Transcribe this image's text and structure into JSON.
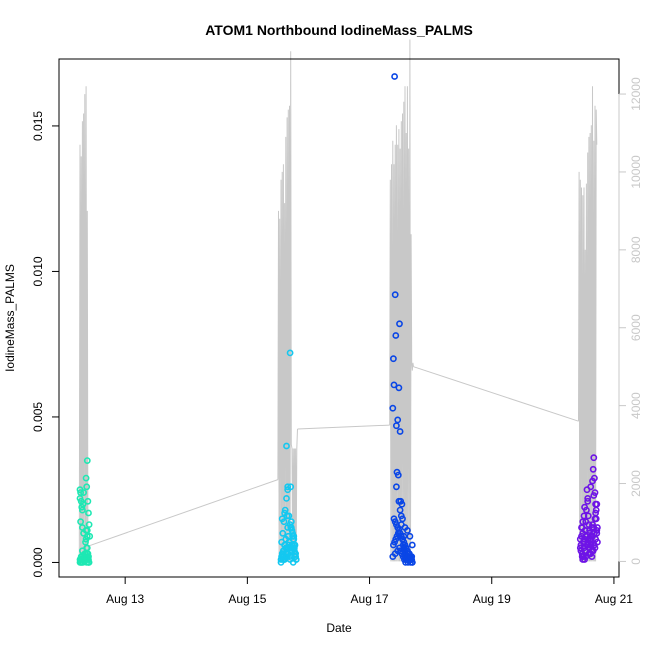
{
  "chart_data": {
    "type": "scatter",
    "title": "ATOM1 Northbound IodineMass_PALMS",
    "xlabel": "Date",
    "ylabel": "IodineMass_PALMS",
    "secondary_axis": {
      "tick_labels": [
        "0",
        "2000",
        "4000",
        "6000",
        "8000",
        "10000",
        "12000"
      ],
      "tick_values": [
        0,
        2000,
        4000,
        6000,
        8000,
        10000,
        12000
      ],
      "ylim": [
        -400,
        12900
      ],
      "color": "#c8c8c8"
    },
    "xlim": [
      "Aug 11 22:00",
      "Aug 21 02:00"
    ],
    "ylim": [
      -0.0005,
      0.0173
    ],
    "x_ticks": [
      {
        "label": "Aug 13",
        "day": 13
      },
      {
        "label": "Aug 15",
        "day": 15
      },
      {
        "label": "Aug 17",
        "day": 17
      },
      {
        "label": "Aug 19",
        "day": 19
      },
      {
        "label": "Aug 21",
        "day": 21
      }
    ],
    "y_ticks": [
      {
        "label": "0.000",
        "value": 0.0
      },
      {
        "label": "0.005",
        "value": 0.005
      },
      {
        "label": "0.010",
        "value": 0.01
      },
      {
        "label": "0.015",
        "value": 0.015
      }
    ],
    "grid": false,
    "background_line": {
      "color": "#c8c8c8",
      "segments": [
        {
          "x": [
            12.25,
            12.26,
            12.27,
            12.28,
            12.29,
            12.3,
            12.31,
            12.32,
            12.33,
            12.34,
            12.35,
            12.36,
            12.37,
            12.38,
            12.39,
            12.4,
            12.41
          ],
          "y": [
            0,
            10700,
            0,
            10400,
            0,
            11300,
            0,
            11500,
            0,
            12000,
            0,
            12200,
            0,
            9000,
            300,
            0,
            200
          ]
        },
        {
          "x": [
            12.41,
            15.5
          ],
          "y": [
            400,
            2100
          ]
        },
        {
          "x": [
            15.5,
            15.51,
            15.52,
            15.53,
            15.54,
            15.55,
            15.56,
            15.57,
            15.58,
            15.59,
            15.6,
            15.61,
            15.62,
            15.63,
            15.64,
            15.65,
            15.66,
            15.67,
            15.68,
            15.69,
            15.7,
            15.71,
            15.72,
            15.73,
            15.74,
            15.75,
            15.76,
            15.77,
            15.78,
            15.79,
            15.8,
            15.81,
            15.82
          ],
          "y": [
            2100,
            9000,
            0,
            8800,
            0,
            9800,
            0,
            10000,
            0,
            10200,
            0,
            9200,
            0,
            10900,
            0,
            11400,
            0,
            11600,
            0,
            11700,
            0,
            13100,
            3000,
            2900,
            0,
            2900,
            0,
            2900,
            0,
            2900,
            0,
            2900,
            3400
          ]
        },
        {
          "x": [
            15.82,
            17.33
          ],
          "y": [
            3400,
            3500
          ]
        },
        {
          "x": [
            17.33,
            17.34,
            17.35,
            17.36,
            17.37,
            17.38,
            17.39,
            17.4,
            17.41,
            17.42,
            17.43,
            17.44,
            17.45,
            17.46,
            17.47,
            17.48,
            17.49,
            17.5,
            17.51,
            17.52,
            17.53,
            17.54,
            17.55,
            17.56,
            17.57,
            17.58,
            17.59,
            17.6,
            17.61,
            17.62,
            17.63,
            17.64,
            17.65,
            17.66,
            17.67,
            17.68,
            17.69,
            17.7,
            17.71,
            17.72
          ],
          "y": [
            3500,
            9800,
            0,
            10200,
            0,
            10800,
            0,
            10200,
            0,
            10700,
            0,
            11200,
            0,
            10700,
            0,
            11100,
            0,
            10600,
            0,
            11300,
            0,
            11500,
            0,
            11800,
            0,
            12200,
            0,
            11000,
            0,
            12200,
            0,
            10600,
            0,
            13400,
            0,
            8400,
            5100,
            4900,
            5100,
            5000
          ]
        },
        {
          "x": [
            17.72,
            20.42
          ],
          "y": [
            5000,
            3600
          ]
        },
        {
          "x": [
            20.42,
            20.43,
            20.44,
            20.45,
            20.46,
            20.47,
            20.48,
            20.49,
            20.5,
            20.51,
            20.52,
            20.53,
            20.54,
            20.55,
            20.56,
            20.57,
            20.58,
            20.59,
            20.6,
            20.61,
            20.62,
            20.63,
            20.64,
            20.65,
            20.66,
            20.67,
            20.68,
            20.69,
            20.7,
            20.71,
            20.72
          ],
          "y": [
            3600,
            10000,
            0,
            9800,
            0,
            9600,
            0,
            9400,
            0,
            9600,
            0,
            8000,
            0,
            9700,
            0,
            10500,
            0,
            10900,
            0,
            11000,
            0,
            11200,
            0,
            12200,
            0,
            10800,
            0,
            11700,
            0,
            11600,
            10700
          ]
        }
      ]
    },
    "series": [
      {
        "color": "#1ee8b3",
        "x": [
          12.26,
          12.27,
          12.28,
          12.29,
          12.3,
          12.31,
          12.32,
          12.33,
          12.34,
          12.35,
          12.36,
          12.37,
          12.38,
          12.39,
          12.4,
          12.41,
          12.42,
          12.26,
          12.27,
          12.28,
          12.29,
          12.31,
          12.33,
          12.35,
          12.37,
          12.39,
          12.26,
          12.27,
          12.3,
          12.32,
          12.36,
          12.38,
          12.4,
          12.26,
          12.28,
          12.3,
          12.33,
          12.35,
          12.37,
          12.39,
          12.41,
          12.36,
          12.38,
          12.3,
          12.34,
          12.38,
          12.4,
          12.29,
          12.37,
          12.39,
          12.4,
          12.27,
          12.29,
          12.31,
          12.34,
          12.38,
          12.4
        ],
        "y": [
          0.0025,
          0.0024,
          0.0021,
          0.0019,
          0.0018,
          0.002,
          0.0024,
          0.0002,
          0.0001,
          0.0003,
          0.0029,
          0.0026,
          0.0035,
          0.0021,
          0.0017,
          0.0013,
          0.0009,
          0.0001,
          0.0,
          0.0002,
          0.0001,
          0.0,
          0.0001,
          0.0002,
          0.0,
          0.0001,
          0.0022,
          0.0014,
          0.0012,
          0.001,
          0.0008,
          0.0011,
          0.0002,
          0.0,
          0.0001,
          0.0002,
          0.0001,
          0.0007,
          0.0005,
          0.0003,
          0.0,
          0.0011,
          0.0009,
          0.0004,
          0.0003,
          0.0005,
          0.0001,
          0.0,
          0.0001,
          0.0002,
          0.0,
          0.0001,
          0.0,
          0.0001,
          0.0002,
          0.0003,
          0.0
        ]
      },
      {
        "color": "#14c8f0",
        "x": [
          15.55,
          15.56,
          15.57,
          15.58,
          15.59,
          15.6,
          15.61,
          15.62,
          15.63,
          15.64,
          15.65,
          15.66,
          15.67,
          15.68,
          15.69,
          15.7,
          15.71,
          15.72,
          15.73,
          15.74,
          15.75,
          15.76,
          15.77,
          15.78,
          15.79,
          15.8,
          15.56,
          15.58,
          15.6,
          15.62,
          15.64,
          15.66,
          15.68,
          15.7,
          15.72,
          15.74,
          15.76,
          15.78,
          15.57,
          15.59,
          15.61,
          15.63,
          15.65,
          15.67,
          15.69,
          15.71,
          15.73,
          15.75,
          15.77,
          15.79,
          15.55,
          15.6,
          15.65,
          15.7,
          15.75,
          15.8,
          15.58,
          15.63,
          15.68,
          15.73,
          15.78,
          15.57,
          15.61,
          15.66,
          15.71,
          15.76
        ],
        "y": [
          0.0001,
          0.0002,
          0.0003,
          0.0001,
          0.0002,
          0.0004,
          0.0001,
          0.0002,
          0.0003,
          0.004,
          0.0016,
          0.0012,
          0.0009,
          0.0006,
          0.0005,
          0.0072,
          0.0026,
          0.0014,
          0.0011,
          0.0009,
          0.0008,
          0.0006,
          0.0005,
          0.0003,
          0.0002,
          0.0001,
          0.0007,
          0.001,
          0.0014,
          0.0018,
          0.0022,
          0.0026,
          0.0016,
          0.0013,
          0.0012,
          0.001,
          0.0008,
          0.0006,
          0.0002,
          0.0004,
          0.0006,
          0.0008,
          0.0005,
          0.0003,
          0.0002,
          0.0004,
          0.0006,
          0.0005,
          0.0004,
          0.0003,
          0.0,
          0.0001,
          0.0002,
          0.0001,
          0.0,
          0.0001,
          0.0003,
          0.0005,
          0.0007,
          0.0004,
          0.0002,
          0.0015,
          0.0017,
          0.0025,
          0.0012,
          0.0009
        ]
      },
      {
        "color": "#0a46e6",
        "x": [
          17.38,
          17.39,
          17.4,
          17.41,
          17.42,
          17.43,
          17.44,
          17.45,
          17.46,
          17.47,
          17.48,
          17.49,
          17.5,
          17.51,
          17.52,
          17.53,
          17.54,
          17.55,
          17.56,
          17.57,
          17.58,
          17.59,
          17.6,
          17.61,
          17.62,
          17.63,
          17.64,
          17.65,
          17.66,
          17.67,
          17.68,
          17.69,
          17.7,
          17.4,
          17.42,
          17.44,
          17.46,
          17.48,
          17.5,
          17.52,
          17.54,
          17.56,
          17.58,
          17.6,
          17.62,
          17.64,
          17.66,
          17.68,
          17.7,
          17.39,
          17.41,
          17.43,
          17.45,
          17.47,
          17.49,
          17.51,
          17.53,
          17.55,
          17.57,
          17.59,
          17.61,
          17.63,
          17.65,
          17.67,
          17.69,
          17.38,
          17.42,
          17.46,
          17.5,
          17.54,
          17.58,
          17.62,
          17.66,
          17.7,
          17.44,
          17.48,
          17.52,
          17.56,
          17.6,
          17.64,
          17.68
        ],
        "y": [
          0.0053,
          0.007,
          0.0061,
          0.0167,
          0.0092,
          0.0078,
          0.0047,
          0.0031,
          0.0049,
          0.003,
          0.006,
          0.0082,
          0.0045,
          0.0021,
          0.0016,
          0.002,
          0.0008,
          0.0006,
          0.0005,
          0.0004,
          0.0003,
          0.0002,
          0.0001,
          0.0002,
          0.0001,
          0.0,
          0.0001,
          0.0002,
          0.0001,
          0.0,
          0.0001,
          0.0002,
          0.0,
          0.0015,
          0.0014,
          0.0013,
          0.0012,
          0.0011,
          0.001,
          0.0009,
          0.0008,
          0.0007,
          0.0006,
          0.0005,
          0.0004,
          0.0003,
          0.0002,
          0.0001,
          0.0,
          0.0006,
          0.0007,
          0.0008,
          0.0009,
          0.001,
          0.0005,
          0.0004,
          0.0003,
          0.0002,
          0.0001,
          0.0,
          0.0001,
          0.0002,
          0.0003,
          0.0002,
          0.0001,
          0.0002,
          0.0003,
          0.0004,
          0.0018,
          0.0015,
          0.0012,
          0.0011,
          0.0009,
          0.0006,
          0.0026,
          0.0021,
          0.0013,
          0.0009,
          0.0005,
          0.0003,
          0.0002
        ]
      },
      {
        "color": "#6e14e6",
        "x": [
          20.45,
          20.46,
          20.47,
          20.48,
          20.49,
          20.5,
          20.51,
          20.52,
          20.53,
          20.54,
          20.55,
          20.56,
          20.57,
          20.58,
          20.59,
          20.6,
          20.61,
          20.62,
          20.63,
          20.64,
          20.65,
          20.66,
          20.67,
          20.68,
          20.69,
          20.7,
          20.71,
          20.72,
          20.73,
          20.46,
          20.48,
          20.5,
          20.52,
          20.54,
          20.56,
          20.58,
          20.6,
          20.62,
          20.64,
          20.66,
          20.68,
          20.7,
          20.72,
          20.47,
          20.49,
          20.51,
          20.53,
          20.55,
          20.57,
          20.59,
          20.61,
          20.63,
          20.65,
          20.67,
          20.69,
          20.71,
          20.45,
          20.5,
          20.55,
          20.6,
          20.65,
          20.7,
          20.48,
          20.53,
          20.58,
          20.63,
          20.68,
          20.73,
          20.52,
          20.57,
          20.62,
          20.67,
          20.72,
          20.49,
          20.54,
          20.59,
          20.64,
          20.69
        ],
        "y": [
          0.0008,
          0.0006,
          0.0009,
          0.0012,
          0.001,
          0.0007,
          0.0005,
          0.0008,
          0.0011,
          0.0014,
          0.0018,
          0.0025,
          0.0021,
          0.0016,
          0.0013,
          0.001,
          0.0008,
          0.0006,
          0.0009,
          0.0012,
          0.0028,
          0.0032,
          0.0036,
          0.0029,
          0.0024,
          0.002,
          0.0015,
          0.0011,
          0.0007,
          0.0004,
          0.0003,
          0.0002,
          0.0001,
          0.0004,
          0.0006,
          0.0008,
          0.0005,
          0.0003,
          0.0002,
          0.0004,
          0.0006,
          0.0008,
          0.001,
          0.0012,
          0.0014,
          0.0016,
          0.0011,
          0.0009,
          0.0007,
          0.0005,
          0.0003,
          0.0006,
          0.0009,
          0.0012,
          0.0015,
          0.0018,
          0.0005,
          0.0007,
          0.0009,
          0.0011,
          0.0013,
          0.0017,
          0.0002,
          0.0004,
          0.0006,
          0.0008,
          0.001,
          0.0012,
          0.0019,
          0.0022,
          0.0026,
          0.0023,
          0.002,
          0.0001,
          0.0002,
          0.0003,
          0.0004,
          0.0005
        ]
      }
    ]
  }
}
